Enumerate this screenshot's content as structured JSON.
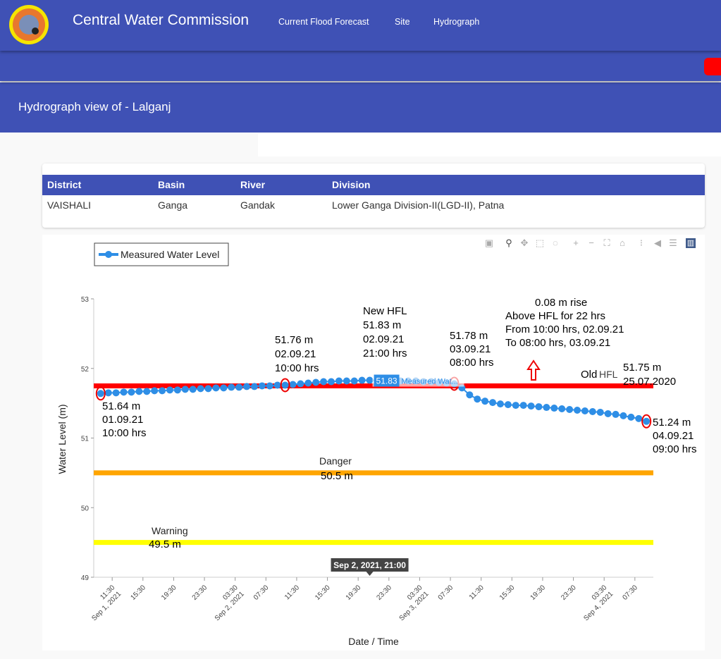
{
  "header": {
    "brand": "Central Water Commission",
    "nav": [
      "Current Flood Forecast",
      "Site",
      "Hydrograph"
    ]
  },
  "page_title": "Hydrograph view of - Lalganj",
  "info_table": {
    "columns": [
      "District",
      "Basin",
      "River",
      "Division"
    ],
    "row": [
      "VAISHALI",
      "Ganga",
      "Gandak",
      "Lower Ganga Division-II(LGD-II), Patna"
    ]
  },
  "toolbar": [
    "camera-icon",
    "zoom-icon",
    "pan-icon",
    "box-select-icon",
    "lasso-icon",
    "zoom-in-icon",
    "zoom-out-icon",
    "autoscale-icon",
    "reset-axes-icon",
    "spike-lines-icon",
    "hover-closest-icon",
    "hover-compare-icon",
    "plotly-logo-icon"
  ],
  "colors": {
    "series": "#2e8ee6",
    "hfl": "#ff0000",
    "danger": "#ffa500",
    "warning": "#ffff00",
    "header": "#3f51b5"
  },
  "chart_data": {
    "type": "line",
    "xlabel": "Date / Time",
    "ylabel": "Water Level (m)",
    "ylim": [
      49,
      53
    ],
    "yticks": [
      49,
      50,
      51,
      52,
      53
    ],
    "x_unit": "hours since Sep 1, 2021 00:00",
    "xlim": [
      9.1,
      81.9
    ],
    "xticks": [
      {
        "h": 11.5,
        "label": "11:30",
        "date": "Sep 1, 2021"
      },
      {
        "h": 15.5,
        "label": "15:30"
      },
      {
        "h": 19.5,
        "label": "19:30"
      },
      {
        "h": 23.5,
        "label": "23:30"
      },
      {
        "h": 27.5,
        "label": "03:30",
        "date": "Sep 2, 2021"
      },
      {
        "h": 31.5,
        "label": "07:30"
      },
      {
        "h": 35.5,
        "label": "11:30"
      },
      {
        "h": 39.5,
        "label": "15:30"
      },
      {
        "h": 43.5,
        "label": "19:30"
      },
      {
        "h": 47.5,
        "label": "23:30"
      },
      {
        "h": 51.5,
        "label": "03:30",
        "date": "Sep 3, 2021"
      },
      {
        "h": 55.5,
        "label": "07:30"
      },
      {
        "h": 59.5,
        "label": "11:30"
      },
      {
        "h": 63.5,
        "label": "15:30"
      },
      {
        "h": 67.5,
        "label": "19:30"
      },
      {
        "h": 71.5,
        "label": "23:30"
      },
      {
        "h": 75.5,
        "label": "03:30",
        "date": "Sep 4, 2021"
      },
      {
        "h": 79.5,
        "label": "07:30"
      }
    ],
    "legend": {
      "label": "Measured Water Level",
      "position": "top-left"
    },
    "series": [
      {
        "name": "Measured Water Level",
        "start_hour": 10,
        "step_hours": 1,
        "values": [
          51.64,
          51.65,
          51.65,
          51.66,
          51.66,
          51.67,
          51.67,
          51.68,
          51.68,
          51.69,
          51.69,
          51.7,
          51.7,
          51.71,
          51.71,
          51.72,
          51.72,
          51.73,
          51.73,
          51.74,
          51.74,
          51.75,
          51.75,
          51.76,
          51.76,
          51.77,
          51.78,
          51.79,
          51.8,
          51.81,
          51.81,
          51.82,
          51.82,
          51.82,
          51.83,
          51.83,
          51.83,
          51.83,
          51.83,
          51.82,
          51.82,
          51.82,
          51.81,
          51.81,
          51.8,
          51.79,
          51.78,
          51.72,
          51.62,
          51.56,
          51.53,
          51.51,
          51.49,
          51.48,
          51.47,
          51.47,
          51.46,
          51.45,
          51.44,
          51.43,
          51.42,
          51.41,
          51.4,
          51.39,
          51.38,
          51.37,
          51.35,
          51.34,
          51.32,
          51.3,
          51.28,
          51.24
        ]
      }
    ],
    "reference_lines": [
      {
        "name": "Old HFL",
        "value": 51.75,
        "color": "#ff0000",
        "label_a": "Old",
        "label_b": "HFL",
        "label_value": "51.75 m",
        "label_date": "25.07.2020"
      },
      {
        "name": "Danger",
        "value": 50.5,
        "color": "#ffa500",
        "label": "Danger",
        "label_value": "50.5 m"
      },
      {
        "name": "Warning",
        "value": 49.5,
        "color": "#ffff00",
        "label": "Warning",
        "label_value": "49.5 m"
      }
    ],
    "marked_points": [
      {
        "h": 10,
        "value": 51.64,
        "lines": [
          "51.64 m",
          "01.09.21",
          "10:00 hrs"
        ]
      },
      {
        "h": 34,
        "value": 51.76,
        "lines": [
          "51.76 m",
          "02.09.21",
          "10:00 hrs"
        ]
      },
      {
        "h": 56,
        "value": 51.78,
        "lines": [
          "51.78 m",
          "03.09.21",
          "08:00 hrs"
        ]
      },
      {
        "h": 81,
        "value": 51.24,
        "lines": [
          "51.24 m",
          "04.09.21",
          "09:00 hrs"
        ]
      }
    ],
    "new_hfl": {
      "lines": [
        "New HFL",
        "51.83 m",
        "02.09.21",
        "21:00 hrs"
      ]
    },
    "rise_note": {
      "lines": [
        "0.08 m rise",
        "Above HFL for 22 hrs",
        "From 10:00 hrs, 02.09.21",
        "To      08:00 hrs, 03.09.21"
      ]
    },
    "hover": {
      "h": 45,
      "value": "51.83",
      "series_label": "Measured Wat...",
      "x_label": "Sep 2, 2021, 21:00"
    }
  }
}
